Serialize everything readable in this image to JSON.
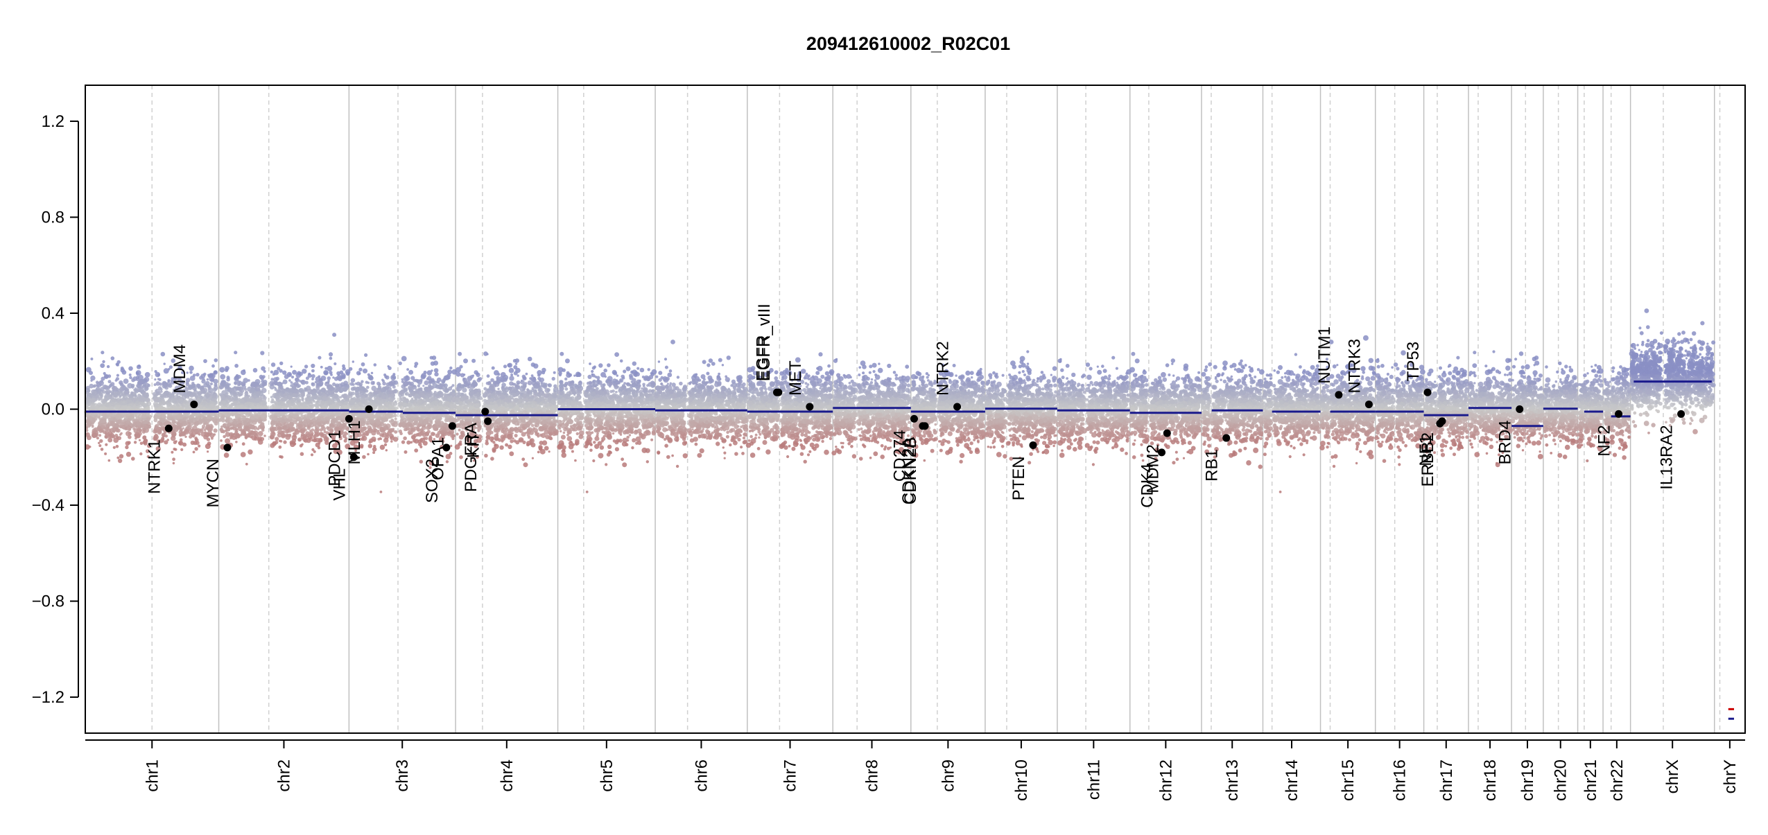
{
  "chart_data": {
    "type": "scatter",
    "title": "209412610002_R02C01",
    "xlabel": "",
    "ylabel": "",
    "ylim": [
      -1.35,
      1.35
    ],
    "yticks": [
      {
        "value": 1.2,
        "label": "1.2"
      },
      {
        "value": 0.8,
        "label": "0.8"
      },
      {
        "value": 0.4,
        "label": "0.4"
      },
      {
        "value": 0.0,
        "label": "0.0"
      },
      {
        "value": -0.4,
        "label": "−0.4"
      },
      {
        "value": -0.8,
        "label": "−0.8"
      },
      {
        "value": -1.2,
        "label": "−1.2"
      }
    ],
    "grid": "chromosome boundaries (solid) and centromeres (dashed)",
    "colors": {
      "gain": "#8a8fc4",
      "neutral": "#c8c8c8",
      "loss": "#b97a7a",
      "segment": "#1a1a8c",
      "gene_point": "#000000",
      "boundary": "#c0c0c0",
      "centromere": "#d0d0d0"
    },
    "chromosomes": [
      {
        "name": "chr1",
        "start": 0,
        "end": 248,
        "centromere": 124,
        "seg": [
          [
            0,
            248,
            -0.01
          ]
        ],
        "noise": 0.07,
        "shift": 0.0
      },
      {
        "name": "chr2",
        "start": 248,
        "end": 490,
        "centromere": 341,
        "seg": [
          [
            248,
            490,
            -0.005
          ]
        ],
        "noise": 0.07,
        "shift": 0.0
      },
      {
        "name": "chr3",
        "start": 490,
        "end": 688,
        "centromere": 581,
        "seg": [
          [
            490,
            590,
            -0.01
          ],
          [
            590,
            688,
            -0.015
          ]
        ],
        "noise": 0.07,
        "shift": 0.0
      },
      {
        "name": "chr4",
        "start": 688,
        "end": 878,
        "centromere": 738,
        "seg": [
          [
            688,
            878,
            -0.025
          ]
        ],
        "noise": 0.07,
        "shift": 0.0
      },
      {
        "name": "chr5",
        "start": 878,
        "end": 1059,
        "centromere": 926,
        "seg": [
          [
            878,
            1059,
            0.0
          ]
        ],
        "noise": 0.07,
        "shift": 0.0
      },
      {
        "name": "chr6",
        "start": 1059,
        "end": 1230,
        "centromere": 1119,
        "seg": [
          [
            1059,
            1230,
            -0.005
          ]
        ],
        "noise": 0.07,
        "shift": 0.0
      },
      {
        "name": "chr7",
        "start": 1230,
        "end": 1389,
        "centromere": 1290,
        "seg": [
          [
            1230,
            1389,
            -0.01
          ]
        ],
        "noise": 0.07,
        "shift": 0.0
      },
      {
        "name": "chr8",
        "start": 1389,
        "end": 1534,
        "centromere": 1434,
        "seg": [
          [
            1389,
            1534,
            0.005
          ]
        ],
        "noise": 0.07,
        "shift": 0.0
      },
      {
        "name": "chr9",
        "start": 1534,
        "end": 1672,
        "centromere": 1583,
        "seg": [
          [
            1534,
            1672,
            -0.01
          ]
        ],
        "noise": 0.07,
        "shift": 0.0
      },
      {
        "name": "chr10",
        "start": 1672,
        "end": 1806,
        "centromere": 1712,
        "seg": [
          [
            1672,
            1806,
            0.002
          ]
        ],
        "noise": 0.07,
        "shift": 0.0
      },
      {
        "name": "chr11",
        "start": 1806,
        "end": 1941,
        "centromere": 1859,
        "seg": [
          [
            1806,
            1941,
            -0.005
          ]
        ],
        "noise": 0.07,
        "shift": 0.0
      },
      {
        "name": "chr12",
        "start": 1941,
        "end": 2074,
        "centromere": 1976,
        "seg": [
          [
            1941,
            2074,
            -0.015
          ]
        ],
        "noise": 0.07,
        "shift": 0.0
      },
      {
        "name": "chr13",
        "start": 2074,
        "end": 2188,
        "centromere": 2092,
        "seg": [
          [
            2093,
            2188,
            -0.005
          ]
        ],
        "noise": 0.07,
        "shift": 0.0
      },
      {
        "name": "chr14",
        "start": 2188,
        "end": 2295,
        "centromere": 2205,
        "seg": [
          [
            2205,
            2295,
            -0.01
          ]
        ],
        "noise": 0.07,
        "shift": 0.0
      },
      {
        "name": "chr15",
        "start": 2295,
        "end": 2397,
        "centromere": 2313,
        "seg": [
          [
            2313,
            2397,
            -0.01
          ]
        ],
        "noise": 0.07,
        "shift": 0.0
      },
      {
        "name": "chr16",
        "start": 2397,
        "end": 2487,
        "centromere": 2433,
        "seg": [
          [
            2397,
            2487,
            -0.01
          ]
        ],
        "noise": 0.07,
        "shift": 0.0
      },
      {
        "name": "chr17",
        "start": 2487,
        "end": 2570,
        "centromere": 2512,
        "seg": [
          [
            2487,
            2570,
            -0.025
          ]
        ],
        "noise": 0.07,
        "shift": 0.0
      },
      {
        "name": "chr18",
        "start": 2570,
        "end": 2650,
        "centromere": 2588,
        "seg": [
          [
            2570,
            2650,
            0.005
          ]
        ],
        "noise": 0.07,
        "shift": 0.0
      },
      {
        "name": "chr19",
        "start": 2650,
        "end": 2709,
        "centromere": 2676,
        "seg": [
          [
            2650,
            2709,
            -0.07
          ]
        ],
        "noise": 0.07,
        "shift": 0.0
      },
      {
        "name": "chr20",
        "start": 2709,
        "end": 2773,
        "centromere": 2737,
        "seg": [
          [
            2709,
            2773,
            0.002
          ]
        ],
        "noise": 0.07,
        "shift": 0.0
      },
      {
        "name": "chr21",
        "start": 2773,
        "end": 2820,
        "centromere": 2785,
        "seg": [
          [
            2785,
            2820,
            -0.01
          ]
        ],
        "noise": 0.07,
        "shift": 0.0
      },
      {
        "name": "chr22",
        "start": 2820,
        "end": 2871,
        "centromere": 2835,
        "seg": [
          [
            2835,
            2871,
            -0.03
          ]
        ],
        "noise": 0.07,
        "shift": 0.0
      },
      {
        "name": "chrX",
        "start": 2871,
        "end": 3027,
        "centromere": 2932,
        "seg": [
          [
            2877,
            3022,
            0.115
          ]
        ],
        "noise": 0.07,
        "shift": 0.13
      },
      {
        "name": "chrY",
        "start": 3027,
        "end": 3084,
        "centromere": 3037,
        "seg": [],
        "noise": 0.0,
        "shift": 0.0
      }
    ],
    "chrY_marks": [
      {
        "value": -1.25,
        "color": "#cc0000",
        "dashed": true
      },
      {
        "value": -1.29,
        "color": "#1a1a8c",
        "dashed": false
      }
    ],
    "genes": [
      {
        "name": "NTRK1",
        "pos": 155,
        "value": -0.08,
        "side": "below"
      },
      {
        "name": "MDM4",
        "pos": 202,
        "value": 0.02,
        "side": "above"
      },
      {
        "name": "MYCN",
        "pos": 264,
        "value": -0.16,
        "side": "below"
      },
      {
        "name": "VHL",
        "pos": 499,
        "value": -0.2,
        "side": "below"
      },
      {
        "name": "PDCD1",
        "pos": 490,
        "value": -0.04,
        "side": "below"
      },
      {
        "name": "MLH1",
        "pos": 527,
        "value": 0.0,
        "side": "below"
      },
      {
        "name": "SOX2",
        "pos": 671,
        "value": -0.16,
        "side": "below"
      },
      {
        "name": "OPA1",
        "pos": 682,
        "value": -0.07,
        "side": "below"
      },
      {
        "name": "PDGFRA",
        "pos": 743,
        "value": -0.01,
        "side": "below"
      },
      {
        "name": "KIT",
        "pos": 748,
        "value": -0.05,
        "side": "below"
      },
      {
        "name": "EGFR",
        "pos": 1285,
        "value": 0.07,
        "side": "above"
      },
      {
        "name": "EGFR_vIII",
        "pos": 1288,
        "value": 0.07,
        "side": "above"
      },
      {
        "name": "MET",
        "pos": 1346,
        "value": 0.01,
        "side": "above"
      },
      {
        "name": "CDKN2A",
        "pos": 1556,
        "value": -0.07,
        "side": "below"
      },
      {
        "name": "CD274",
        "pos": 1540,
        "value": -0.04,
        "side": "below"
      },
      {
        "name": "CDKN2B",
        "pos": 1560,
        "value": -0.07,
        "side": "below"
      },
      {
        "name": "NTRK2",
        "pos": 1620,
        "value": 0.01,
        "side": "above"
      },
      {
        "name": "PTEN",
        "pos": 1761,
        "value": -0.15,
        "side": "below"
      },
      {
        "name": "CDK4",
        "pos": 2000,
        "value": -0.18,
        "side": "below"
      },
      {
        "name": "MDM2",
        "pos": 2010,
        "value": -0.1,
        "side": "below"
      },
      {
        "name": "RB1",
        "pos": 2120,
        "value": -0.12,
        "side": "below"
      },
      {
        "name": "NUTM1",
        "pos": 2329,
        "value": 0.06,
        "side": "above"
      },
      {
        "name": "NTRK3",
        "pos": 2385,
        "value": 0.02,
        "side": "above"
      },
      {
        "name": "TP53",
        "pos": 2494,
        "value": 0.07,
        "side": "above"
      },
      {
        "name": "NF1",
        "pos": 2517,
        "value": -0.06,
        "side": "below"
      },
      {
        "name": "ERBB2",
        "pos": 2521,
        "value": -0.05,
        "side": "below"
      },
      {
        "name": "BRD4",
        "pos": 2665,
        "value": 0.0,
        "side": "below"
      },
      {
        "name": "NF2",
        "pos": 2849,
        "value": -0.02,
        "side": "below"
      },
      {
        "name": "IL13RA2",
        "pos": 2965,
        "value": -0.02,
        "side": "below"
      }
    ]
  }
}
